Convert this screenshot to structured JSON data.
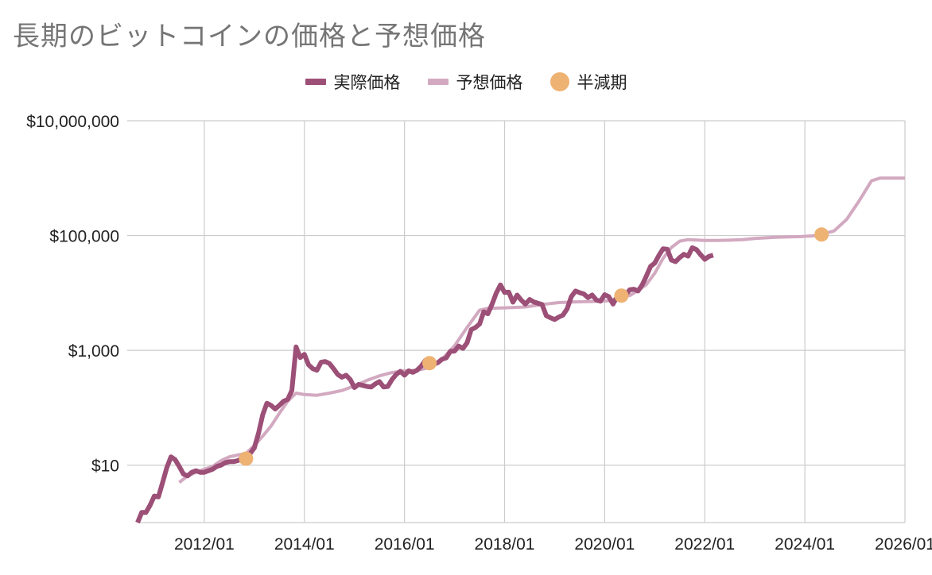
{
  "chart_data": {
    "type": "line",
    "title": "長期のビットコインの価格と予想価格",
    "xlabel": "",
    "ylabel": "",
    "y_scale": "log",
    "ylim": [
      1,
      10000000
    ],
    "xlim": [
      "2010-09",
      "2026-01"
    ],
    "grid": true,
    "legend_position": "top",
    "y_ticks": [
      {
        "value": 10,
        "label": "$10"
      },
      {
        "value": 1000,
        "label": "$1,000"
      },
      {
        "value": 100000,
        "label": "$100,000"
      },
      {
        "value": 10000000,
        "label": "$10,000,000"
      }
    ],
    "x_ticks": [
      {
        "date": "2012-01",
        "label": "2012/01"
      },
      {
        "date": "2014-01",
        "label": "2014/01"
      },
      {
        "date": "2016-01",
        "label": "2016/01"
      },
      {
        "date": "2018-01",
        "label": "2018/01"
      },
      {
        "date": "2020-01",
        "label": "2020/01"
      },
      {
        "date": "2022-01",
        "label": "2022/01"
      },
      {
        "date": "2024-01",
        "label": "2024/01"
      },
      {
        "date": "2026-01",
        "label": "2026/01"
      }
    ],
    "series": [
      {
        "name": "実際価格",
        "color": "#9c4f77",
        "points": [
          [
            "2010-09",
            1.0
          ],
          [
            "2010-10",
            1.5
          ],
          [
            "2010-11",
            1.5
          ],
          [
            "2010-12",
            2.0
          ],
          [
            "2011-01",
            2.9
          ],
          [
            "2011-02",
            2.8
          ],
          [
            "2011-03",
            5.0
          ],
          [
            "2011-04",
            9.0
          ],
          [
            "2011-05",
            14.0
          ],
          [
            "2011-06",
            12.5
          ],
          [
            "2011-07",
            9.5
          ],
          [
            "2011-08",
            7.0
          ],
          [
            "2011-09",
            6.5
          ],
          [
            "2011-10",
            7.5
          ],
          [
            "2011-11",
            8.0
          ],
          [
            "2011-12",
            7.5
          ],
          [
            "2012-01",
            7.5
          ],
          [
            "2012-02",
            8.0
          ],
          [
            "2012-03",
            8.5
          ],
          [
            "2012-04",
            9.5
          ],
          [
            "2012-05",
            10.0
          ],
          [
            "2012-06",
            11.0
          ],
          [
            "2012-07",
            11.5
          ],
          [
            "2012-08",
            11.5
          ],
          [
            "2012-09",
            12.0
          ],
          [
            "2012-10",
            13.0
          ],
          [
            "2012-11",
            13.5
          ],
          [
            "2012-12",
            16.0
          ],
          [
            "2013-01",
            20.0
          ],
          [
            "2013-02",
            36.0
          ],
          [
            "2013-03",
            75.0
          ],
          [
            "2013-04",
            120.0
          ],
          [
            "2013-05",
            110.0
          ],
          [
            "2013-06",
            95.0
          ],
          [
            "2013-07",
            110.0
          ],
          [
            "2013-08",
            130.0
          ],
          [
            "2013-09",
            140.0
          ],
          [
            "2013-10",
            200.0
          ],
          [
            "2013-11",
            1150.0
          ],
          [
            "2013-12",
            750.0
          ],
          [
            "2014-01",
            850.0
          ],
          [
            "2014-02",
            560.0
          ],
          [
            "2014-03",
            480.0
          ],
          [
            "2014-04",
            450.0
          ],
          [
            "2014-05",
            620.0
          ],
          [
            "2014-06",
            640.0
          ],
          [
            "2014-07",
            590.0
          ],
          [
            "2014-08",
            480.0
          ],
          [
            "2014-09",
            380.0
          ],
          [
            "2014-10",
            340.0
          ],
          [
            "2014-11",
            370.0
          ],
          [
            "2014-12",
            310.0
          ],
          [
            "2015-01",
            225.0
          ],
          [
            "2015-02",
            255.0
          ],
          [
            "2015-03",
            245.0
          ],
          [
            "2015-04",
            235.0
          ],
          [
            "2015-05",
            230.0
          ],
          [
            "2015-06",
            260.0
          ],
          [
            "2015-07",
            285.0
          ],
          [
            "2015-08",
            230.0
          ],
          [
            "2015-09",
            235.0
          ],
          [
            "2015-10",
            310.0
          ],
          [
            "2015-11",
            380.0
          ],
          [
            "2015-12",
            430.0
          ],
          [
            "2016-01",
            370.0
          ],
          [
            "2016-02",
            440.0
          ],
          [
            "2016-03",
            415.0
          ],
          [
            "2016-04",
            450.0
          ],
          [
            "2016-05",
            530.0
          ],
          [
            "2016-06",
            670.0
          ],
          [
            "2016-07",
            625.0
          ],
          [
            "2016-08",
            575.0
          ],
          [
            "2016-09",
            610.0
          ],
          [
            "2016-10",
            700.0
          ],
          [
            "2016-11",
            740.0
          ],
          [
            "2016-12",
            960.0
          ],
          [
            "2017-01",
            970.0
          ],
          [
            "2017-02",
            1190.0
          ],
          [
            "2017-03",
            1080.0
          ],
          [
            "2017-04",
            1350.0
          ],
          [
            "2017-05",
            2300.0
          ],
          [
            "2017-06",
            2500.0
          ],
          [
            "2017-07",
            2875.0
          ],
          [
            "2017-08",
            4700.0
          ],
          [
            "2017-09",
            4340.0
          ],
          [
            "2017-10",
            6400.0
          ],
          [
            "2017-11",
            9900.0
          ],
          [
            "2017-12",
            13800.0
          ],
          [
            "2018-01",
            10200.0
          ],
          [
            "2018-02",
            10300.0
          ],
          [
            "2018-03",
            6900.0
          ],
          [
            "2018-04",
            9200.0
          ],
          [
            "2018-05",
            7500.0
          ],
          [
            "2018-06",
            6400.0
          ],
          [
            "2018-07",
            7700.0
          ],
          [
            "2018-08",
            7000.0
          ],
          [
            "2018-09",
            6600.0
          ],
          [
            "2018-10",
            6300.0
          ],
          [
            "2018-11",
            4000.0
          ],
          [
            "2018-12",
            3700.0
          ],
          [
            "2019-01",
            3450.0
          ],
          [
            "2019-02",
            3800.0
          ],
          [
            "2019-03",
            4100.0
          ],
          [
            "2019-04",
            5300.0
          ],
          [
            "2019-05",
            8600.0
          ],
          [
            "2019-06",
            10800.0
          ],
          [
            "2019-07",
            10100.0
          ],
          [
            "2019-08",
            9600.0
          ],
          [
            "2019-09",
            8300.0
          ],
          [
            "2019-10",
            9200.0
          ],
          [
            "2019-11",
            7550.0
          ],
          [
            "2019-12",
            7200.0
          ],
          [
            "2020-01",
            9350.0
          ],
          [
            "2020-02",
            8600.0
          ],
          [
            "2020-03",
            6400.0
          ],
          [
            "2020-04",
            8650.0
          ],
          [
            "2020-05",
            9450.0
          ],
          [
            "2020-06",
            9150.0
          ],
          [
            "2020-07",
            11350.0
          ],
          [
            "2020-08",
            11650.0
          ],
          [
            "2020-09",
            10800.0
          ],
          [
            "2020-10",
            13800.0
          ],
          [
            "2020-11",
            19700.0
          ],
          [
            "2020-12",
            29000.0
          ],
          [
            "2021-01",
            33100.0
          ],
          [
            "2021-02",
            45000.0
          ],
          [
            "2021-03",
            58800.0
          ],
          [
            "2021-04",
            57700.0
          ],
          [
            "2021-05",
            37300.0
          ],
          [
            "2021-06",
            35000.0
          ],
          [
            "2021-07",
            41500.0
          ],
          [
            "2021-08",
            47100.0
          ],
          [
            "2021-09",
            43800.0
          ],
          [
            "2021-10",
            61300.0
          ],
          [
            "2021-11",
            57000.0
          ],
          [
            "2021-12",
            46300.0
          ],
          [
            "2022-01",
            38500.0
          ],
          [
            "2022-02",
            43200.0
          ],
          [
            "2022-03",
            45500.0
          ]
        ]
      },
      {
        "name": "予想価格",
        "color": "#d2a9c0",
        "points": [
          [
            "2011-07",
            5.0
          ],
          [
            "2011-09",
            6.5
          ],
          [
            "2011-12",
            8.0
          ],
          [
            "2012-03",
            9.5
          ],
          [
            "2012-05",
            12.0
          ],
          [
            "2012-07",
            14.0
          ],
          [
            "2012-09",
            15.0
          ],
          [
            "2012-11",
            16.0
          ],
          [
            "2013-01",
            22.0
          ],
          [
            "2013-03",
            32.0
          ],
          [
            "2013-05",
            48.0
          ],
          [
            "2013-07",
            80.0
          ],
          [
            "2013-09",
            130.0
          ],
          [
            "2013-11",
            180.0
          ],
          [
            "2014-01",
            170.0
          ],
          [
            "2014-04",
            165.0
          ],
          [
            "2014-07",
            180.0
          ],
          [
            "2014-10",
            200.0
          ],
          [
            "2015-01",
            240.0
          ],
          [
            "2015-04",
            300.0
          ],
          [
            "2015-07",
            360.0
          ],
          [
            "2015-10",
            410.0
          ],
          [
            "2016-01",
            440.0
          ],
          [
            "2016-04",
            450.0
          ],
          [
            "2016-07",
            500.0
          ],
          [
            "2016-10",
            700.0
          ],
          [
            "2017-01",
            1200.0
          ],
          [
            "2017-04",
            2500.0
          ],
          [
            "2017-07",
            5000.0
          ],
          [
            "2017-09",
            5400.0
          ],
          [
            "2018-01",
            5500.0
          ],
          [
            "2018-06",
            5700.0
          ],
          [
            "2018-10",
            6300.0
          ],
          [
            "2019-02",
            6800.0
          ],
          [
            "2019-06",
            7000.0
          ],
          [
            "2019-10",
            7100.0
          ],
          [
            "2020-02",
            7300.0
          ],
          [
            "2020-05",
            8500.0
          ],
          [
            "2020-07",
            9000.0
          ],
          [
            "2020-09",
            11000.0
          ],
          [
            "2020-11",
            14000.0
          ],
          [
            "2021-01",
            22000.0
          ],
          [
            "2021-03",
            40000.0
          ],
          [
            "2021-05",
            62000.0
          ],
          [
            "2021-07",
            80000.0
          ],
          [
            "2021-09",
            85000.0
          ],
          [
            "2022-01",
            82000.0
          ],
          [
            "2022-04",
            82000.0
          ],
          [
            "2022-07",
            83000.0
          ],
          [
            "2022-10",
            85000.0
          ],
          [
            "2023-01",
            89000.0
          ],
          [
            "2023-06",
            93000.0
          ],
          [
            "2023-12",
            96000.0
          ],
          [
            "2024-04",
            100000.0
          ],
          [
            "2024-08",
            120000.0
          ],
          [
            "2024-11",
            190000.0
          ],
          [
            "2025-02",
            400000.0
          ],
          [
            "2025-05",
            900000.0
          ],
          [
            "2025-07",
            1000000.0
          ],
          [
            "2026-01",
            1000000.0
          ]
        ]
      },
      {
        "name": "半減期",
        "color": "#eeb272",
        "type": "scatter",
        "points": [
          [
            "2012-11",
            13.0
          ],
          [
            "2016-07",
            600.0
          ],
          [
            "2020-05",
            9000.0
          ],
          [
            "2024-05",
            104000.0
          ]
        ]
      }
    ]
  }
}
